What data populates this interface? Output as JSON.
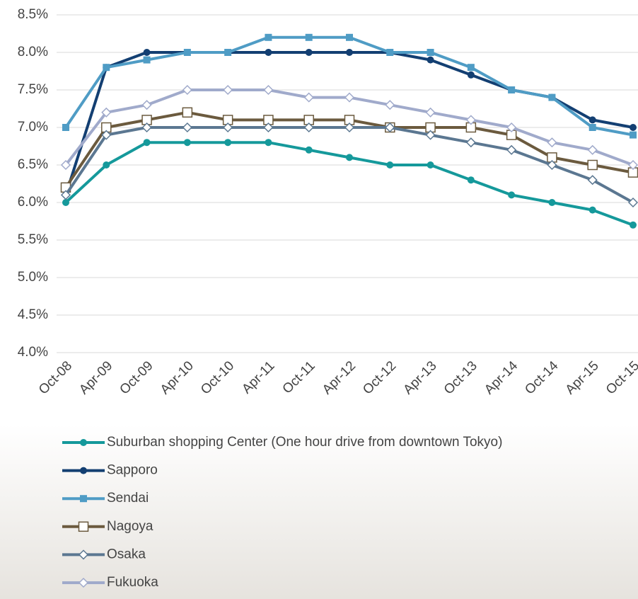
{
  "chart_data": {
    "type": "line",
    "categories": [
      "Oct-08",
      "Apr-09",
      "Oct-09",
      "Apr-10",
      "Oct-10",
      "Apr-11",
      "Oct-11",
      "Apr-12",
      "Oct-12",
      "Apr-13",
      "Oct-13",
      "Apr-14",
      "Oct-14",
      "Apr-15",
      "Oct-15"
    ],
    "ylim": [
      4.0,
      8.5
    ],
    "yticks": [
      {
        "value": 4.0,
        "label": "4.0%"
      },
      {
        "value": 4.5,
        "label": "4.5%"
      },
      {
        "value": 5.0,
        "label": "5.0%"
      },
      {
        "value": 5.5,
        "label": "5.5%"
      },
      {
        "value": 6.0,
        "label": "6.0%"
      },
      {
        "value": 6.5,
        "label": "6.5%"
      },
      {
        "value": 7.0,
        "label": "7.0%"
      },
      {
        "value": 7.5,
        "label": "7.5%"
      },
      {
        "value": 8.0,
        "label": "8.0%"
      },
      {
        "value": 8.5,
        "label": "8.5%"
      }
    ],
    "grid": true,
    "legend": "bottom",
    "series": [
      {
        "name": "Suburban shopping Center (One hour drive from downtown Tokyo)",
        "color": "#15999b",
        "marker": "circle",
        "values": [
          6.0,
          6.5,
          6.8,
          6.8,
          6.8,
          6.8,
          6.7,
          6.6,
          6.5,
          6.5,
          6.3,
          6.1,
          6.0,
          5.9,
          5.7
        ]
      },
      {
        "name": "Sapporo",
        "color": "#133f72",
        "marker": "circle",
        "values": [
          6.1,
          7.8,
          8.0,
          8.0,
          8.0,
          8.0,
          8.0,
          8.0,
          8.0,
          7.9,
          7.7,
          7.5,
          7.4,
          7.1,
          7.0
        ]
      },
      {
        "name": "Sendai",
        "color": "#4f9cc5",
        "marker": "square",
        "values": [
          7.0,
          7.8,
          7.9,
          8.0,
          8.0,
          8.2,
          8.2,
          8.2,
          8.0,
          8.0,
          7.8,
          7.5,
          7.4,
          7.0,
          6.9
        ]
      },
      {
        "name": "Nagoya",
        "color": "#6b5a3e",
        "marker": "open-square",
        "values": [
          6.2,
          7.0,
          7.1,
          7.2,
          7.1,
          7.1,
          7.1,
          7.1,
          7.0,
          7.0,
          7.0,
          6.9,
          6.6,
          6.5,
          6.4
        ]
      },
      {
        "name": "Osaka",
        "color": "#5b7791",
        "marker": "open-diamond",
        "values": [
          6.1,
          6.9,
          7.0,
          7.0,
          7.0,
          7.0,
          7.0,
          7.0,
          7.0,
          6.9,
          6.8,
          6.7,
          6.5,
          6.3,
          6.0
        ]
      },
      {
        "name": "Fukuoka",
        "color": "#a0aacb",
        "marker": "open-diamond",
        "values": [
          6.5,
          7.2,
          7.3,
          7.5,
          7.5,
          7.5,
          7.4,
          7.4,
          7.3,
          7.2,
          7.1,
          7.0,
          6.8,
          6.7,
          6.5
        ]
      }
    ]
  }
}
